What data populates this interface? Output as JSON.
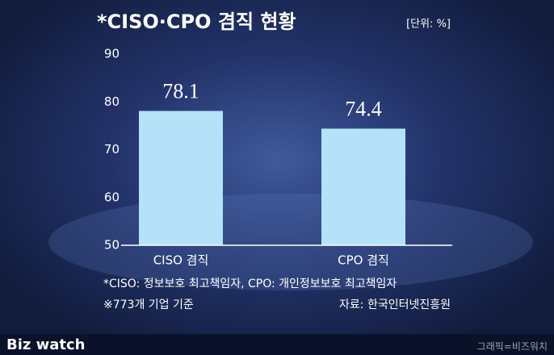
{
  "chart_data": {
    "type": "bar",
    "title": "*CISO·CPO 겸직 현황",
    "unit_label": "[단위: %]",
    "categories": [
      "CISO 겸직",
      "CPO 겸직"
    ],
    "values": [
      78.1,
      74.4
    ],
    "color": "#b5e2f8",
    "ylim": [
      50,
      90
    ],
    "yticks": [
      50,
      60,
      70,
      80,
      90
    ],
    "grid": false,
    "notes": [
      "*CISO: 정보보호 최고책임자, CPO: 개인정보보호 최고책임자",
      "※773개 기업 기준"
    ],
    "source": "자료: 한국인터넷진흥원"
  },
  "footer": {
    "logo": "Biz watch",
    "credit": "그래픽=비즈워치"
  }
}
